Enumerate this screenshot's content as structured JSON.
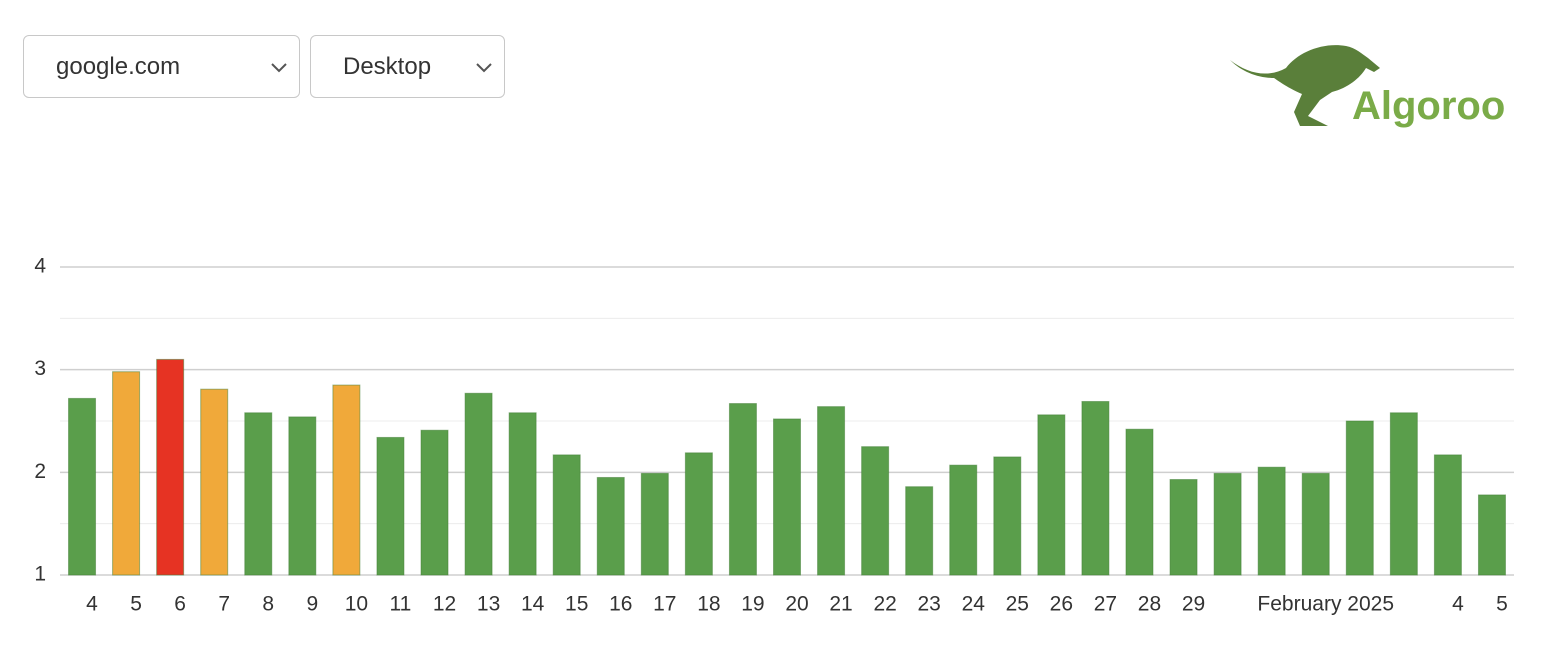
{
  "controls": {
    "site": "google.com",
    "device": "Desktop"
  },
  "logo": "Algoroo",
  "chart_data": {
    "type": "bar",
    "categories": [
      "4",
      "5",
      "6",
      "7",
      "8",
      "9",
      "10",
      "11",
      "12",
      "13",
      "14",
      "15",
      "16",
      "17",
      "18",
      "19",
      "20",
      "21",
      "22",
      "23",
      "24",
      "25",
      "26",
      "27",
      "28",
      "29",
      null,
      null,
      "February 2025",
      null,
      null,
      "4",
      "5"
    ],
    "values": [
      2.72,
      2.98,
      3.1,
      2.81,
      2.58,
      2.54,
      2.85,
      2.34,
      2.41,
      2.77,
      2.58,
      2.17,
      1.95,
      1.99,
      2.19,
      2.67,
      2.52,
      2.64,
      2.25,
      1.86,
      2.07,
      2.15,
      2.56,
      2.69,
      2.42,
      1.93,
      1.99,
      2.05,
      1.99,
      2.5,
      2.58,
      2.17,
      1.78
    ],
    "colors": [
      "#5a9e4b",
      "#f0a93a",
      "#e63323",
      "#f0a93a",
      "#5a9e4b",
      "#5a9e4b",
      "#f0a93a",
      "#5a9e4b",
      "#5a9e4b",
      "#5a9e4b",
      "#5a9e4b",
      "#5a9e4b",
      "#5a9e4b",
      "#5a9e4b",
      "#5a9e4b",
      "#5a9e4b",
      "#5a9e4b",
      "#5a9e4b",
      "#5a9e4b",
      "#5a9e4b",
      "#5a9e4b",
      "#5a9e4b",
      "#5a9e4b",
      "#5a9e4b",
      "#5a9e4b",
      "#5a9e4b",
      "#5a9e4b",
      "#5a9e4b",
      "#5a9e4b",
      "#5a9e4b",
      "#5a9e4b",
      "#5a9e4b",
      "#5a9e4b"
    ],
    "ylim": [
      1,
      4
    ],
    "yticks": [
      1,
      2,
      3,
      4
    ],
    "minor_yticks": [
      1.5,
      2.5,
      3.5
    ],
    "grid": true
  }
}
